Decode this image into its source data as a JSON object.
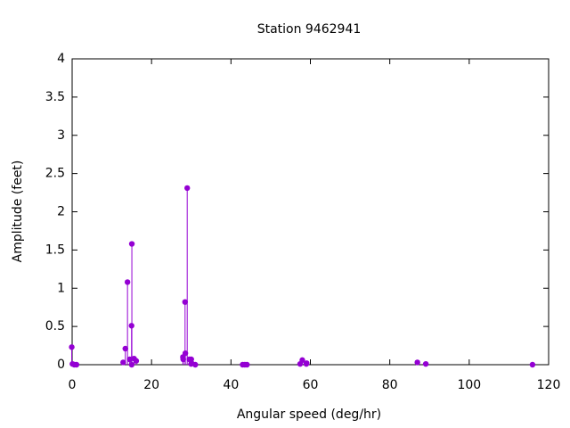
{
  "chart_data": {
    "type": "stem",
    "title": "Station 9462941",
    "x_label": "Angular speed (deg/hr)",
    "y_label": "Amplitude (feet)",
    "series": [
      {
        "color": "#9400d3",
        "x": [
          -0.1,
          0.08,
          0.54,
          1.1,
          12.85,
          13.4,
          13.94,
          14.5,
          14.96,
          15.04,
          15.0,
          15.59,
          16.14,
          27.9,
          27.97,
          28.44,
          28.51,
          28.98,
          29.53,
          29.96,
          30.0,
          30.08,
          31.02,
          42.93,
          43.48,
          44.03,
          57.42,
          57.97,
          58.98,
          59.07,
          86.95,
          89.07,
          115.94
        ],
        "values": [
          0.23,
          0.01,
          0.0,
          0.0,
          0.03,
          0.21,
          1.08,
          0.07,
          0.51,
          1.58,
          0.0,
          0.08,
          0.05,
          0.1,
          0.07,
          0.82,
          0.15,
          2.31,
          0.07,
          0.01,
          0.07,
          0.02,
          0.0,
          0.0,
          0.0,
          0.0,
          0.01,
          0.06,
          0.01,
          0.02,
          0.03,
          0.01,
          0.0
        ]
      }
    ],
    "xlim": [
      0,
      120
    ],
    "xticks": [
      0,
      20,
      40,
      60,
      80,
      100,
      120
    ],
    "ylim": [
      0,
      4
    ],
    "yticks": [
      0,
      0.5,
      1,
      1.5,
      2,
      2.5,
      3,
      3.5,
      4
    ]
  }
}
